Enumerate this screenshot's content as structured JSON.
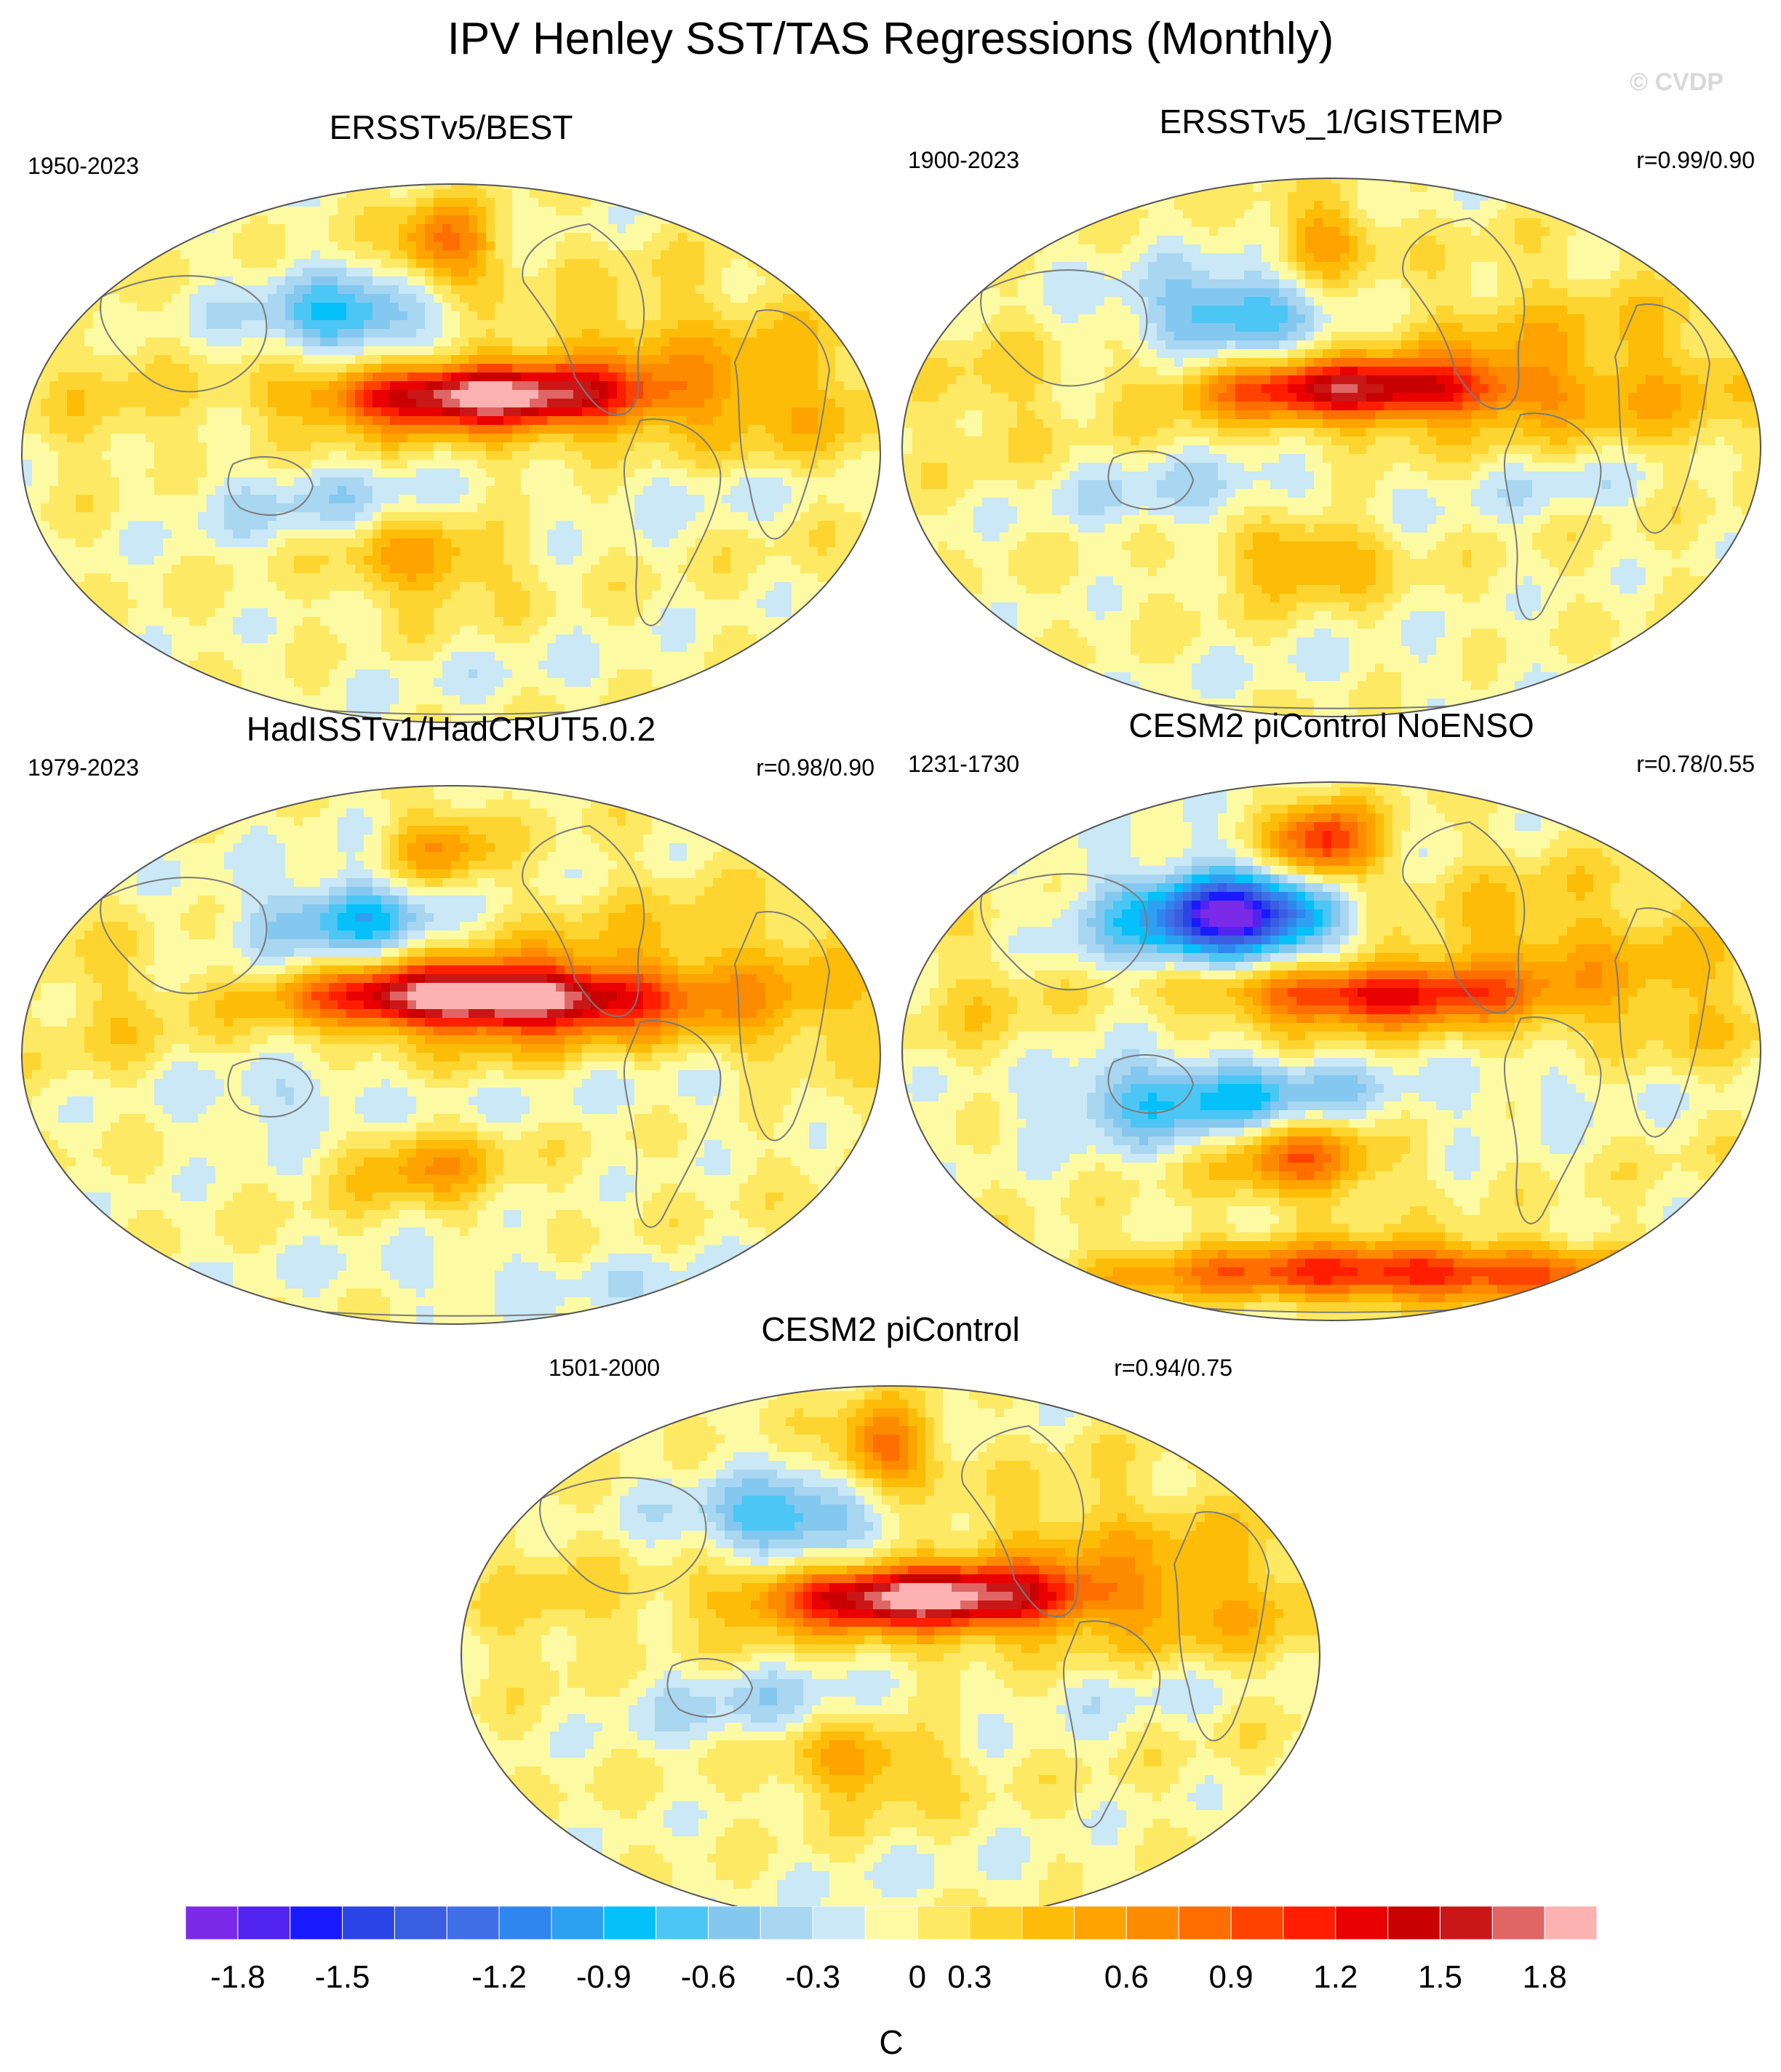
{
  "title": "IPV Henley SST/TAS Regressions (Monthly)",
  "watermark": "© CVDP",
  "chart_data": [
    {
      "type": "heatmap",
      "title": "ERSSTv5/BEST",
      "period": "1950-2023",
      "correlation": "",
      "pattern": {
        "tropical_max": 1.5,
        "npac_min": -0.6,
        "spac_max": 0.6,
        "arctic_max": 0.9,
        "north_atlantic": 0.2,
        "southern_ocean": -0.1
      }
    },
    {
      "type": "heatmap",
      "title": "ERSSTv5_1/GISTEMP",
      "period": "1900-2023",
      "correlation": "r=0.99/0.90",
      "pattern": {
        "tropical_max": 1.2,
        "npac_min": -0.6,
        "spac_max": 0.6,
        "arctic_max": 0.6,
        "north_atlantic": 0.2,
        "southern_ocean": -0.1
      }
    },
    {
      "type": "heatmap",
      "title": "HadISSTv1/HadCRUT5.0.2",
      "period": "1979-2023",
      "correlation": "r=0.98/0.90",
      "pattern": {
        "tropical_max": 1.8,
        "npac_min": -0.6,
        "spac_max": 0.6,
        "arctic_max": 0.6,
        "north_atlantic": 0.1,
        "southern_ocean": -0.2
      }
    },
    {
      "type": "heatmap",
      "title": "CESM2 piControl NoENSO",
      "period": "1231-1730",
      "correlation": "r=0.78/0.55",
      "pattern": {
        "tropical_max": 1.0,
        "npac_min": -1.5,
        "spac_max": 0.9,
        "arctic_max": 1.2,
        "north_atlantic": 0.3,
        "southern_ocean": 1.2
      }
    },
    {
      "type": "heatmap",
      "title": "CESM2 piControl",
      "period": "1501-2000",
      "correlation": "r=0.94/0.75",
      "pattern": {
        "tropical_max": 1.5,
        "npac_min": -0.6,
        "spac_max": 0.6,
        "arctic_max": 0.9,
        "north_atlantic": 0.2,
        "southern_ocean": -0.1
      }
    }
  ],
  "colorbar": {
    "unit": "C",
    "tick_labels": [
      "-1.8",
      "-1.5",
      "-1.2",
      "-0.9",
      "-0.6",
      "-0.3",
      "0",
      "0.3",
      "0.6",
      "0.9",
      "1.2",
      "1.5",
      "1.8"
    ],
    "colors": [
      "#7b2ae8",
      "#5224f0",
      "#1a1aff",
      "#2a44e6",
      "#3a5ee0",
      "#3f6fe6",
      "#2f86ef",
      "#2ea0f2",
      "#06c0f9",
      "#4cc6f5",
      "#85c8ef",
      "#a9d6f0",
      "#cae8f5",
      "#fdfaa4",
      "#fde964",
      "#fed530",
      "#fdbc08",
      "#fea300",
      "#fd8b00",
      "#fe6e00",
      "#fe4300",
      "#ff1e00",
      "#e90000",
      "#c90000",
      "#c91717",
      "#e06565",
      "#fdb2b2"
    ]
  }
}
